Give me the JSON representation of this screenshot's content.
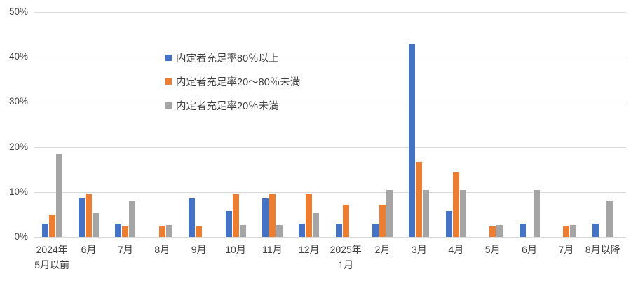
{
  "chart_data": {
    "type": "bar",
    "title": "",
    "xlabel": "",
    "ylabel": "",
    "ylim": [
      0,
      50
    ],
    "ytick_step": 10,
    "ytick_labels": [
      "0%",
      "10%",
      "20%",
      "30%",
      "40%",
      "50%"
    ],
    "grid": true,
    "legend_position": "inside-top-left",
    "categories": [
      "2024年\n5月以前",
      "6月",
      "7月",
      "8月",
      "9月",
      "10月",
      "11月",
      "12月",
      "2025年\n1月",
      "2月",
      "3月",
      "4月",
      "5月",
      "6月",
      "7月",
      "8月以降"
    ],
    "series": [
      {
        "name": "内定者充足率80％以上",
        "color": "#4472C4",
        "values": [
          2.9,
          8.6,
          2.9,
          0,
          8.6,
          5.7,
          8.6,
          2.9,
          2.9,
          2.9,
          42.9,
          5.7,
          0,
          2.9,
          0,
          2.9
        ]
      },
      {
        "name": "内定者充足率20〜80％未満",
        "color": "#ED7D31",
        "values": [
          4.8,
          9.5,
          2.4,
          2.4,
          2.4,
          9.5,
          9.5,
          9.5,
          7.1,
          7.1,
          16.7,
          14.3,
          2.4,
          0,
          2.4,
          0
        ]
      },
      {
        "name": "内定者充足率20％未満",
        "color": "#A5A5A5",
        "values": [
          18.4,
          5.3,
          7.9,
          2.6,
          0,
          2.6,
          2.6,
          5.3,
          0,
          10.5,
          10.5,
          10.5,
          2.6,
          10.5,
          2.6,
          7.9
        ]
      }
    ]
  },
  "colors": {
    "background": "#FFFFFF",
    "gridline": "#D9D9D9",
    "axis_line": "#D9D9D9",
    "axis_text": "#404040"
  }
}
